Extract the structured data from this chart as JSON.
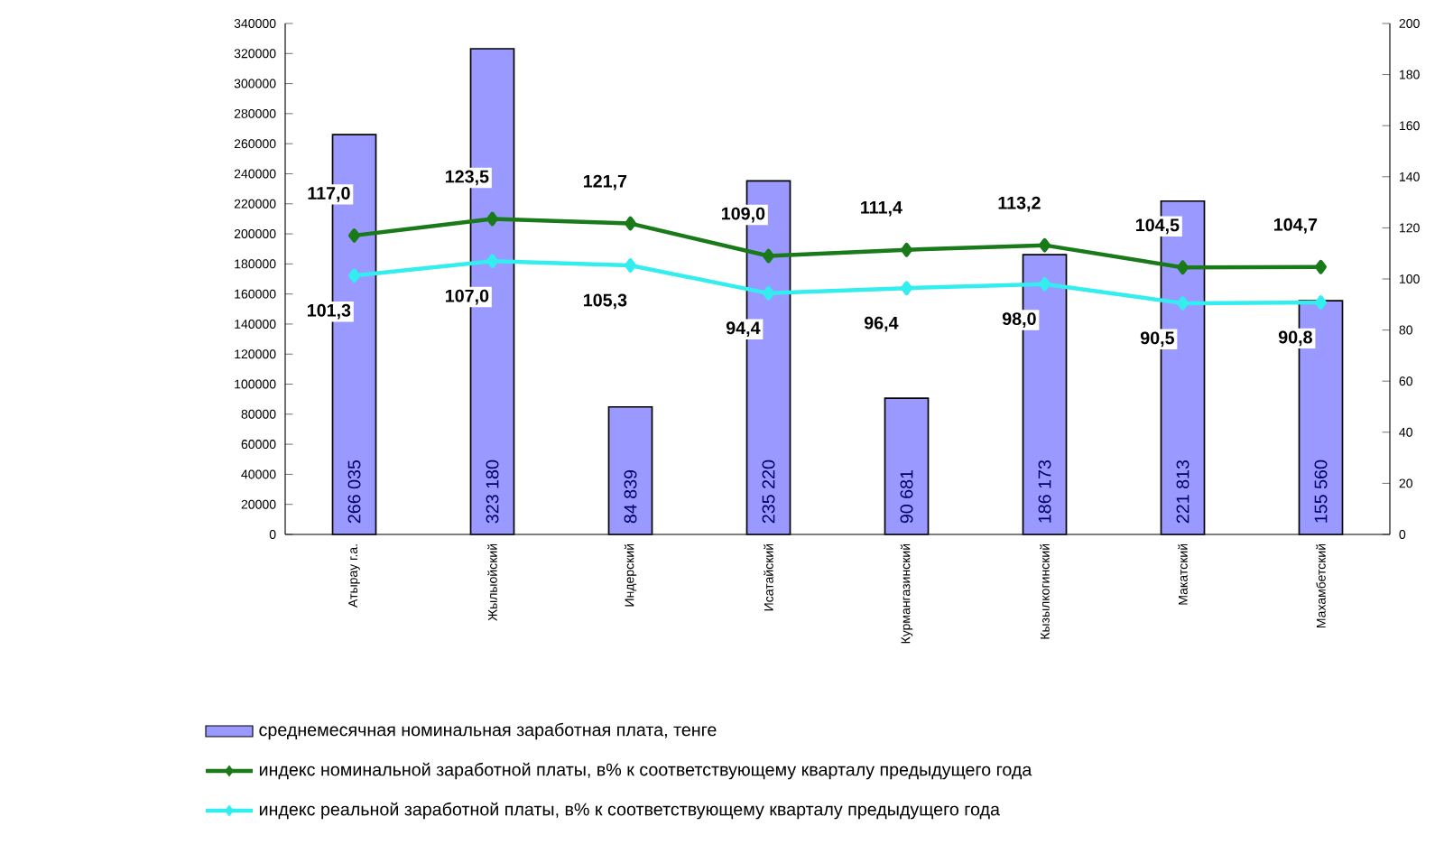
{
  "chart_data": {
    "type": "bar",
    "categories": [
      "Атырау г.а.",
      "Жылыойский",
      "Индерский",
      "Исатайский",
      "Курмангазинский",
      "Кызылкогинский",
      "Макатский",
      "Махамбетский"
    ],
    "series": [
      {
        "name": "среднемесячная номинальная заработная плата, тенге",
        "type": "bar",
        "color": "#9999ff",
        "values": [
          266035,
          323180,
          84839,
          235220,
          90681,
          186173,
          221813,
          155560
        ],
        "value_labels": [
          "266 035",
          "323 180",
          "84 839",
          "235 220",
          "90 681",
          "186 173",
          "221 813",
          "155 560"
        ]
      },
      {
        "name": "индекс номинальной заработной платы, в% к соответствующему кварталу предыдущего года",
        "type": "line",
        "axis": "y2",
        "color": "#1a7a1a",
        "values": [
          117.0,
          123.5,
          121.7,
          109.0,
          111.4,
          113.2,
          104.5,
          104.7
        ],
        "value_labels": [
          "117,0",
          "123,5",
          "121,7",
          "109,0",
          "111,4",
          "113,2",
          "104,5",
          "104,7"
        ]
      },
      {
        "name": "индекс реальной заработной платы, в% к соответствующему кварталу предыдущего года",
        "type": "line",
        "axis": "y2",
        "color": "#33eeee",
        "values": [
          101.3,
          107.0,
          105.3,
          94.4,
          96.4,
          98.0,
          90.5,
          90.8
        ],
        "value_labels": [
          "101,3",
          "107,0",
          "105,3",
          "94,4",
          "96,4",
          "98,0",
          "90,5",
          "90,8"
        ]
      }
    ],
    "ylim": [
      0,
      340000
    ],
    "yticks": [
      0,
      20000,
      40000,
      60000,
      80000,
      100000,
      120000,
      140000,
      160000,
      180000,
      200000,
      220000,
      240000,
      260000,
      280000,
      300000,
      320000,
      340000
    ],
    "y2lim": [
      0,
      200
    ],
    "y2ticks": [
      0,
      20,
      40,
      60,
      80,
      100,
      120,
      140,
      160,
      180,
      200
    ],
    "marker": "diamond",
    "legend": "bottom"
  }
}
